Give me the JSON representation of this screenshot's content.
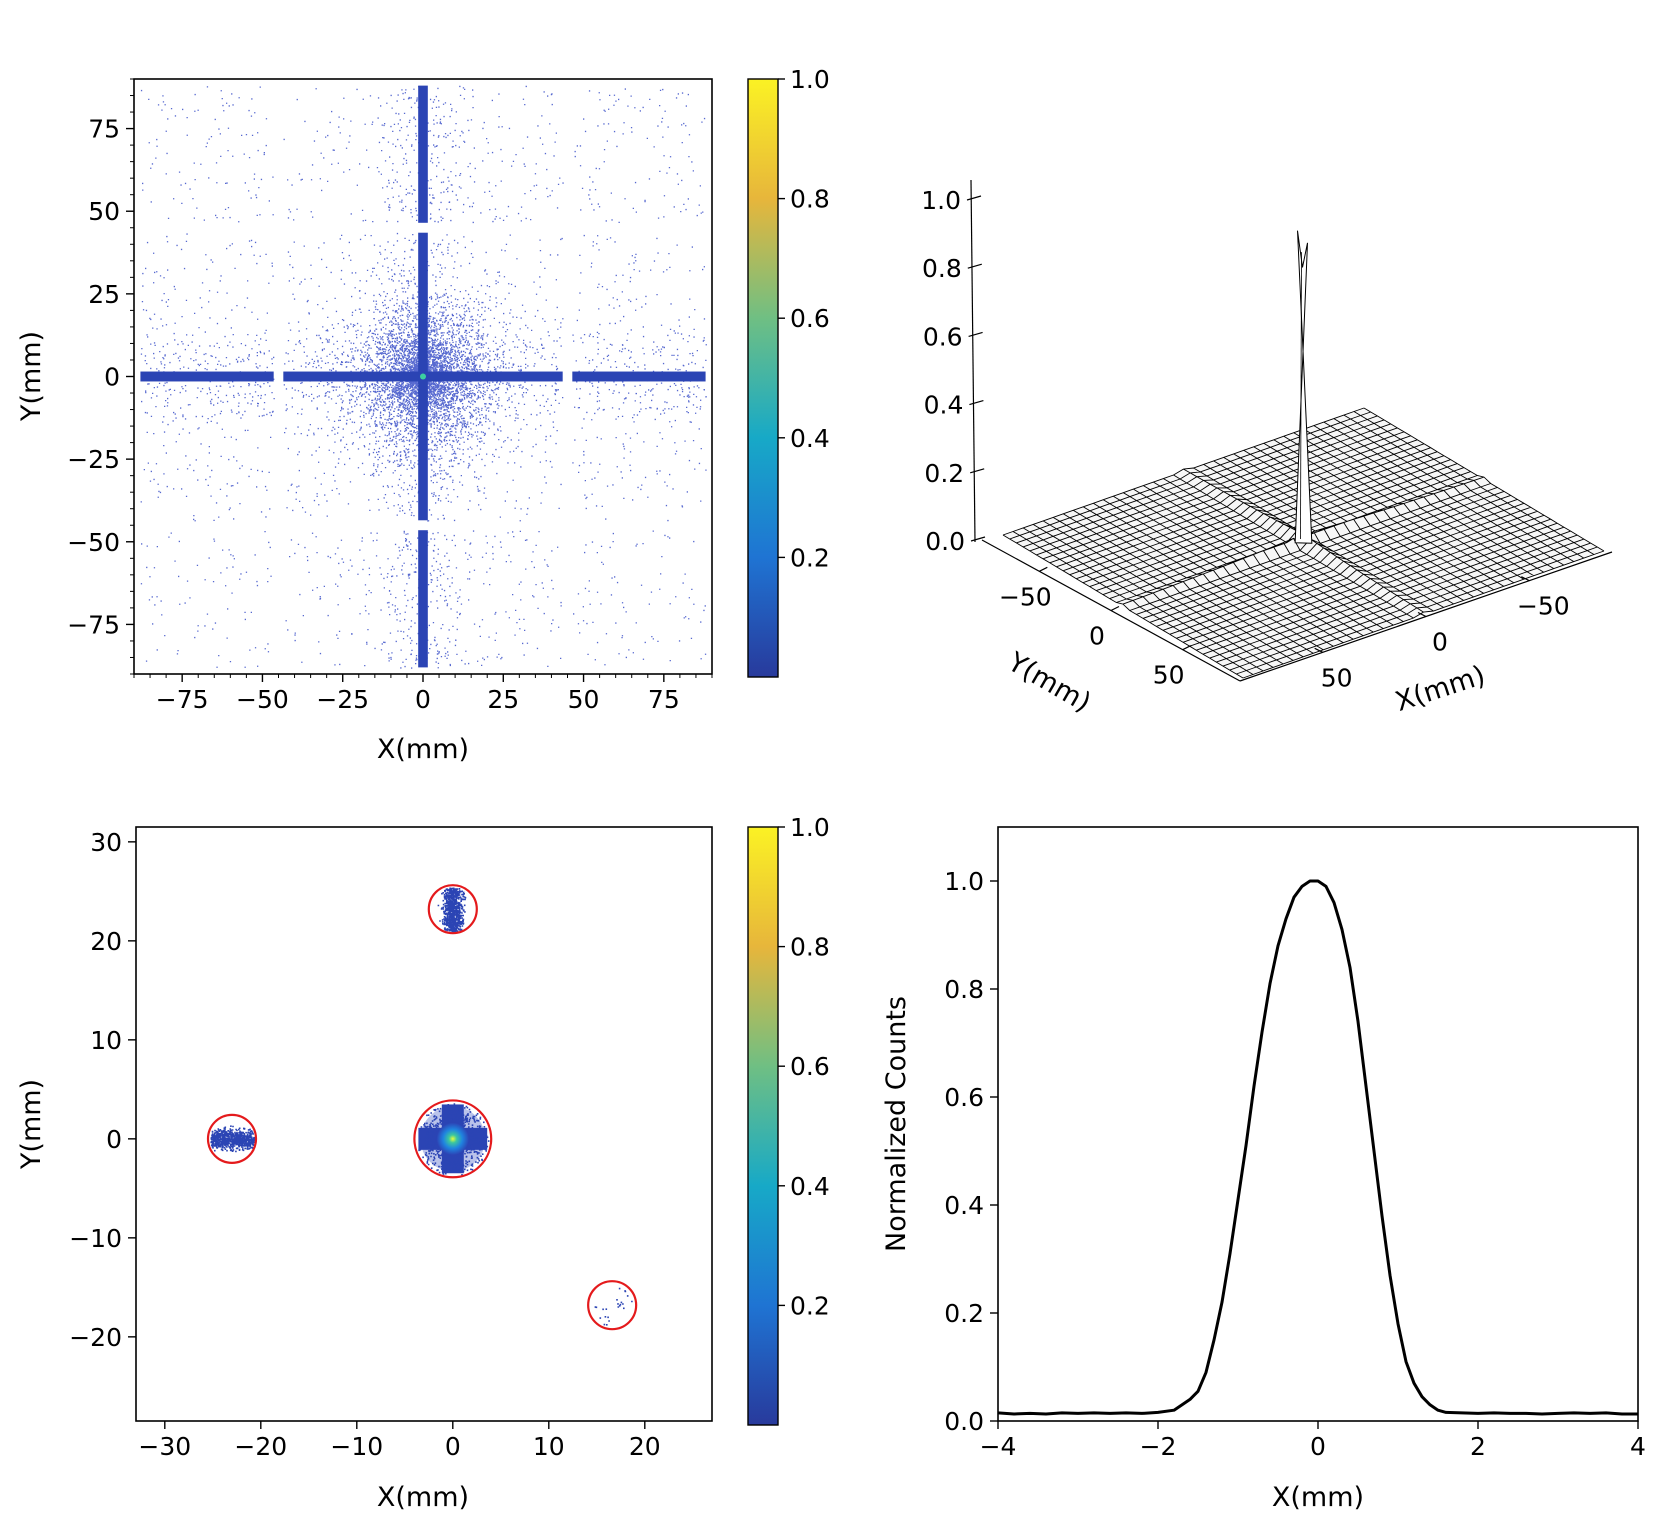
{
  "chart_data": [
    {
      "type": "heatmap",
      "panel": "top-left",
      "xlabel": "X(mm)",
      "ylabel": "Y(mm)",
      "xlim": [
        -90,
        90
      ],
      "ylim": [
        -90,
        90
      ],
      "xticks": [
        -75,
        -50,
        -25,
        0,
        25,
        50,
        75
      ],
      "yticks": [
        -75,
        -50,
        -25,
        0,
        25,
        50,
        75
      ],
      "xtick_labels": [
        "−75",
        "−50",
        "−25",
        "0",
        "25",
        "50",
        "75"
      ],
      "ytick_labels": [
        "−75",
        "−50",
        "−25",
        "0",
        "25",
        "50",
        "75"
      ],
      "colorbar": {
        "ticks": [
          0.2,
          0.4,
          0.6,
          0.8,
          1.0
        ],
        "tick_labels": [
          "0.2",
          "0.4",
          "0.6",
          "0.8",
          "1.0"
        ],
        "range": [
          0,
          1
        ]
      },
      "features": {
        "cross_arm_halfwidth_mm": 1.5,
        "horizontal_arm_gaps_x_mm": [
          -45,
          45
        ],
        "vertical_arm_gaps_y_mm": [
          -45,
          45
        ],
        "peak_at": [
          0,
          0
        ]
      }
    },
    {
      "type": "surface3d",
      "panel": "top-right",
      "zticks": [
        0.0,
        0.2,
        0.4,
        0.6,
        0.8,
        1.0
      ],
      "ztick_labels": [
        "0.0",
        "0.2",
        "0.4",
        "0.6",
        "0.8",
        "1.0"
      ],
      "yticks": [
        -50,
        0,
        50
      ],
      "ytick_labels": [
        "−50",
        "0",
        "50"
      ],
      "xticks": [
        -50,
        0,
        50
      ],
      "xtick_labels": [
        "−50",
        "0",
        "50"
      ],
      "xlabel": "X(mm)",
      "ylabel": "Y(mm)",
      "xlim": [
        -90,
        90
      ],
      "ylim": [
        -90,
        90
      ],
      "zlim": [
        0,
        1
      ],
      "grid_cells": 36,
      "peak_value": 0.88
    },
    {
      "type": "heatmap",
      "panel": "bottom-left",
      "xlabel": "X(mm)",
      "ylabel": "Y(mm)",
      "xlim": [
        -33,
        27
      ],
      "ylim": [
        -28.5,
        31.5
      ],
      "xticks": [
        -30,
        -20,
        -10,
        0,
        10,
        20
      ],
      "yticks": [
        -20,
        -10,
        0,
        10,
        20,
        30
      ],
      "xtick_labels": [
        "−30",
        "−20",
        "−10",
        "0",
        "10",
        "20"
      ],
      "ytick_labels": [
        "−20",
        "−10",
        "0",
        "10",
        "20",
        "30"
      ],
      "colorbar": {
        "ticks": [
          0.2,
          0.4,
          0.6,
          0.8,
          1.0
        ],
        "tick_labels": [
          "0.2",
          "0.4",
          "0.6",
          "0.8",
          "1.0"
        ],
        "range": [
          0,
          1
        ]
      },
      "spots": [
        {
          "x": 0,
          "y": 0,
          "r": 4.0,
          "kind": "cross",
          "hot": true
        },
        {
          "x": 0,
          "y": 23.2,
          "r": 2.5,
          "kind": "vertical"
        },
        {
          "x": -23.0,
          "y": 0,
          "r": 2.5,
          "kind": "horizontal"
        },
        {
          "x": 16.6,
          "y": -16.8,
          "r": 2.5,
          "kind": "sparse"
        }
      ],
      "circle_color": "#e41a1c"
    },
    {
      "type": "line",
      "panel": "bottom-right",
      "xlabel": "X(mm)",
      "ylabel": "Normalized Counts",
      "xlim": [
        -4,
        4
      ],
      "ylim": [
        0,
        1.1
      ],
      "xticks": [
        -4,
        -2,
        0,
        2,
        4
      ],
      "xtick_labels": [
        "−4",
        "−2",
        "0",
        "2",
        "4"
      ],
      "yticks": [
        0.0,
        0.2,
        0.4,
        0.6,
        0.8,
        1.0
      ],
      "ytick_labels": [
        "0.0",
        "0.2",
        "0.4",
        "0.6",
        "0.8",
        "1.0"
      ],
      "x": [
        -4.0,
        -3.8,
        -3.6,
        -3.4,
        -3.2,
        -3.0,
        -2.8,
        -2.6,
        -2.4,
        -2.2,
        -2.0,
        -1.8,
        -1.6,
        -1.5,
        -1.4,
        -1.3,
        -1.2,
        -1.1,
        -1.0,
        -0.9,
        -0.8,
        -0.7,
        -0.6,
        -0.5,
        -0.4,
        -0.3,
        -0.2,
        -0.1,
        0.0,
        0.1,
        0.2,
        0.3,
        0.4,
        0.5,
        0.6,
        0.7,
        0.8,
        0.9,
        1.0,
        1.1,
        1.2,
        1.3,
        1.4,
        1.5,
        1.6,
        1.8,
        2.0,
        2.2,
        2.4,
        2.6,
        2.8,
        3.0,
        3.2,
        3.4,
        3.6,
        3.8,
        4.0
      ],
      "y": [
        0.015,
        0.013,
        0.014,
        0.013,
        0.015,
        0.014,
        0.015,
        0.014,
        0.015,
        0.014,
        0.016,
        0.02,
        0.04,
        0.055,
        0.09,
        0.15,
        0.22,
        0.31,
        0.41,
        0.51,
        0.62,
        0.72,
        0.81,
        0.88,
        0.93,
        0.97,
        0.99,
        1.0,
        1.0,
        0.99,
        0.96,
        0.91,
        0.84,
        0.74,
        0.62,
        0.5,
        0.38,
        0.27,
        0.18,
        0.11,
        0.07,
        0.045,
        0.03,
        0.02,
        0.016,
        0.015,
        0.014,
        0.015,
        0.014,
        0.014,
        0.013,
        0.014,
        0.015,
        0.014,
        0.015,
        0.013,
        0.013
      ],
      "color": "#000000"
    }
  ]
}
